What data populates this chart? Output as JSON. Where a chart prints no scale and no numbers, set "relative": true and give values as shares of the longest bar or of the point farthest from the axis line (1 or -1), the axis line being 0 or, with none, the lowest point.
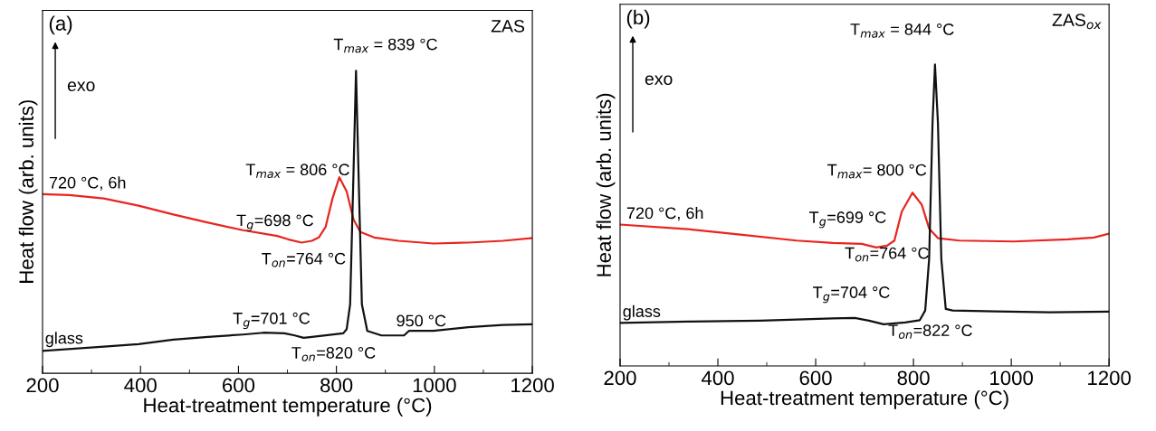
{
  "chart_data": [
    {
      "type": "line",
      "relative": true,
      "xlabel": "Heat-treatment temperature (°C)",
      "ylabel": "Heat flow (arb. units)",
      "xlim": [
        200,
        1200
      ],
      "xticks": [
        200,
        400,
        600,
        800,
        1000,
        1200
      ],
      "tick_labels": "x",
      "marker": "none",
      "line_style": "solid",
      "annotations": [
        "(a)",
        "ZAS",
        "exo",
        {
          "text": "T$_{max}$ = 839 °C",
          "x": 839,
          "y": 1.0
        },
        {
          "text": "T$_{max}$ = 806 °C",
          "x": 806,
          "y": 0.648
        },
        {
          "text": "T$_{g}$=698 °C",
          "x": 698,
          "y": 0.46
        },
        {
          "text": "T$_{on}$=764 °C",
          "x": 764,
          "y": 0.449
        },
        {
          "text": "T$_{g}$=701 °C",
          "x": 701,
          "y": 0.128
        },
        {
          "text": "T$_{on}$=820 °C",
          "x": 820,
          "y": 0.146
        },
        {
          "text": "950 °C",
          "x": 950,
          "y": 0.14
        }
      ],
      "series": [
        {
          "name": "720 °C, 6h",
          "color": "#e8251f",
          "x": [
            200,
            254.5,
            325,
            396,
            467,
            538,
            609,
            679,
            701,
            729,
            750,
            764,
            778,
            792,
            806,
            821,
            835,
            849,
            877,
            927,
            998,
            1069,
            1140,
            1200
          ],
          "values": [
            0.592,
            0.589,
            0.578,
            0.554,
            0.525,
            0.498,
            0.473,
            0.454,
            0.443,
            0.432,
            0.438,
            0.449,
            0.484,
            0.578,
            0.648,
            0.601,
            0.508,
            0.467,
            0.449,
            0.438,
            0.429,
            0.432,
            0.438,
            0.447
          ]
        },
        {
          "name": "glass",
          "color": "#111111",
          "x": [
            200,
            325,
            396,
            467,
            538,
            609,
            651,
            694,
            715,
            733,
            750,
            786,
            814,
            821,
            828,
            835,
            840,
            845,
            852,
            863,
            892,
            938,
            948,
            998,
            1069,
            1140,
            1200
          ],
          "values": [
            0.074,
            0.088,
            0.096,
            0.111,
            0.12,
            0.128,
            0.134,
            0.132,
            0.125,
            0.117,
            0.12,
            0.127,
            0.132,
            0.146,
            0.228,
            0.671,
            1.0,
            0.671,
            0.228,
            0.14,
            0.125,
            0.125,
            0.14,
            0.14,
            0.152,
            0.16,
            0.162
          ]
        }
      ]
    },
    {
      "type": "line",
      "relative": true,
      "xlabel": "Heat-treatment temperature (°C)",
      "ylabel": "Heat flow (arb. units)",
      "xlim": [
        200,
        1200
      ],
      "xticks": [
        200,
        400,
        600,
        800,
        1000,
        1200
      ],
      "tick_labels": "x",
      "marker": "none",
      "line_style": "solid",
      "annotations": [
        "(b)",
        "ZAS$_{ox}$",
        "exo",
        {
          "text": "T$_{max}$ = 844 °C",
          "x": 844,
          "y": 1.0
        },
        {
          "text": "T$_{max}$= 800 °C",
          "x": 800,
          "y": 0.575
        },
        {
          "text": "T$_{g}$=699 °C",
          "x": 699,
          "y": 0.41
        },
        {
          "text": "T$_{on}$=764 °C",
          "x": 764,
          "y": 0.399
        },
        {
          "text": "T$_{g}$=704 °C",
          "x": 704,
          "y": 0.157
        },
        {
          "text": "T$_{on}$=822 °C",
          "x": 822,
          "y": 0.184
        }
      ],
      "series": [
        {
          "name": "720 °C, 6h",
          "color": "#e8251f",
          "x": [
            200,
            339,
            450,
            561,
            635,
            694,
            724,
            746,
            761,
            776,
            798,
            817,
            832,
            850,
            894,
            1005,
            1116,
            1169,
            1200
          ],
          "values": [
            0.469,
            0.454,
            0.435,
            0.416,
            0.408,
            0.405,
            0.393,
            0.399,
            0.416,
            0.512,
            0.575,
            0.535,
            0.456,
            0.424,
            0.416,
            0.413,
            0.42,
            0.426,
            0.439
          ]
        },
        {
          "name": "glass",
          "color": "#111111",
          "x": [
            200,
            339,
            487,
            635,
            680,
            709,
            739,
            783,
            813,
            824,
            832,
            839,
            844,
            850,
            857,
            866,
            880,
            968,
            1079,
            1200
          ],
          "values": [
            0.143,
            0.147,
            0.15,
            0.158,
            0.159,
            0.15,
            0.138,
            0.144,
            0.152,
            0.184,
            0.354,
            0.807,
            1.0,
            0.807,
            0.354,
            0.189,
            0.184,
            0.181,
            0.178,
            0.18
          ]
        }
      ]
    }
  ]
}
